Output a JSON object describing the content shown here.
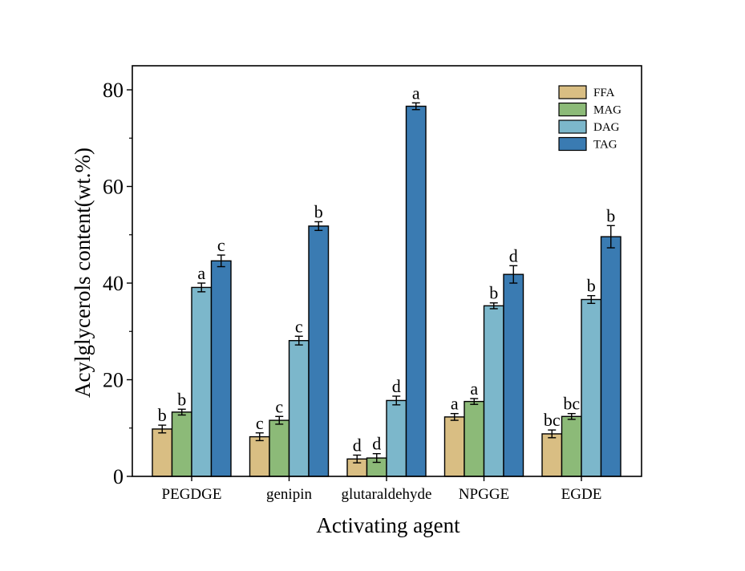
{
  "chart_data": {
    "type": "bar",
    "title": "",
    "xlabel": "Activating agent",
    "ylabel": "Acylglycerols content(wt.%)",
    "ylim": [
      0,
      85
    ],
    "yticks": [
      0,
      20,
      40,
      60,
      80
    ],
    "categories": [
      "PEGDGE",
      "genipin",
      "glutaraldehyde",
      "NPGGE",
      "EGDE"
    ],
    "legend_position": "top-right",
    "grid": false,
    "series": [
      {
        "name": "FFA",
        "color": "#D9BE83",
        "values": [
          9.8,
          8.2,
          3.6,
          12.3,
          8.8
        ],
        "errors": [
          0.8,
          0.8,
          0.8,
          0.7,
          0.8
        ],
        "labels": [
          "b",
          "c",
          "d",
          "a",
          "bc"
        ]
      },
      {
        "name": "MAG",
        "color": "#8CBA78",
        "values": [
          13.3,
          11.6,
          3.8,
          15.5,
          12.4
        ],
        "errors": [
          0.6,
          0.8,
          0.9,
          0.6,
          0.6
        ],
        "labels": [
          "b",
          "c",
          "d",
          "a",
          "bc"
        ]
      },
      {
        "name": "DAG",
        "color": "#7CB7CB",
        "values": [
          39.1,
          28.1,
          15.7,
          35.3,
          36.6
        ],
        "errors": [
          0.9,
          0.9,
          0.9,
          0.6,
          0.8
        ],
        "labels": [
          "a",
          "c",
          "d",
          "b",
          "b"
        ]
      },
      {
        "name": "TAG",
        "color": "#3A7BB2",
        "values": [
          44.6,
          51.8,
          76.6,
          41.8,
          49.6
        ],
        "errors": [
          1.2,
          0.9,
          0.7,
          1.8,
          2.3
        ],
        "labels": [
          "c",
          "b",
          "a",
          "d",
          "b"
        ]
      }
    ]
  }
}
